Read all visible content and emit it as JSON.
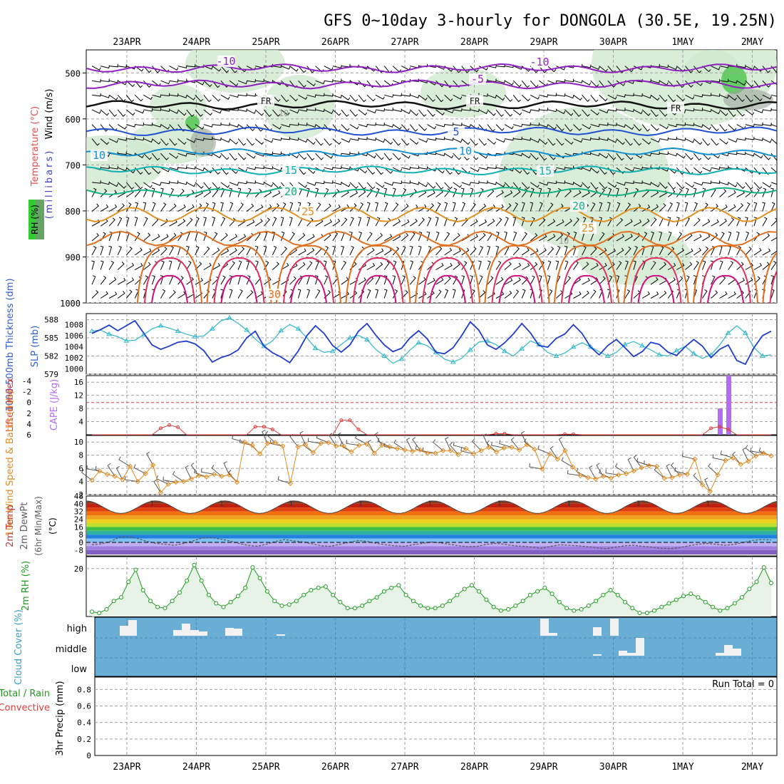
{
  "chart_data": {
    "type": "meteogram",
    "title": "GFS 0~10day 3-hourly for DONGOLA (30.5E, 19.25N)",
    "dates": [
      "23APR",
      "24APR",
      "25APR",
      "26APR",
      "27APR",
      "28APR",
      "29APR",
      "30APR",
      "1MAY",
      "2MAY"
    ],
    "panels": {
      "upper_air": {
        "ylabel_wind": "Wind (m/s)",
        "ylabel_temp": "Temperature (°C)",
        "ylabel_rh": "RH (%)",
        "ylabel_pressure": "(millibars)",
        "pressure_ticks": [
          "500",
          "600",
          "700",
          "800",
          "900",
          "1000"
        ],
        "pressure_range": [
          450,
          1000
        ],
        "isotherm_labels": [
          "-10",
          "-5",
          "FR",
          "5",
          "10",
          "15",
          "20",
          "25",
          "30"
        ],
        "rh_contour_label": "10",
        "isotherms": [
          {
            "label": "-10",
            "level": 490
          },
          {
            "label": "-5",
            "level": 525
          },
          {
            "label": "FR",
            "level": 570
          },
          {
            "label": "5",
            "level": 627
          },
          {
            "label": "10",
            "level": 673
          },
          {
            "label": "15",
            "level": 712
          },
          {
            "label": "20",
            "level": 758
          },
          {
            "label": "25",
            "level": 808
          },
          {
            "label": "30",
            "level": 860
          }
        ]
      },
      "thickness_slp": {
        "ylabel_thickness": "1000-500mb Thickness (dm)",
        "ylabel_slp": "SLP (mb)",
        "thickness_ticks": [
          "588",
          "585",
          "582",
          "579"
        ],
        "slp_ticks": [
          "1008",
          "1006",
          "1004",
          "1002",
          "1000"
        ],
        "thickness_range": [
          579,
          589
        ],
        "slp_range": [
          999,
          1010
        ],
        "slp": [
          1006.4,
          1007.1,
          1007.9,
          1006.9,
          1007.8,
          1008.7,
          1006.5,
          1004.3,
          1003.5,
          1004.1,
          1004.8,
          1005.0,
          1004.5,
          1003.3,
          1001.2,
          1002.0,
          1002.5,
          1003.4,
          1005.6,
          1006.8,
          1004.1,
          1002.9,
          1002.1,
          1001.1,
          1003.2,
          1006.0,
          1007.8,
          1006.4,
          1004.2,
          1003.0,
          1004.3,
          1006.8,
          1008.2,
          1006.1,
          1004.3,
          1003.1,
          1003.7,
          1005.6,
          1006.9,
          1005.4,
          1003.0,
          1002.7,
          1003.8,
          1006.0,
          1008.5,
          1007.0,
          1004.3,
          1003.5,
          1004.7,
          1006.3,
          1008.2,
          1006.5,
          1004.2,
          1003.9,
          1005.5,
          1006.3,
          1008.0,
          1006.4,
          1003.9,
          1002.5,
          1004.2,
          1005.3,
          1003.8,
          1002.2,
          1003.1,
          1004.8,
          1004.4,
          1003.0,
          1002.4,
          1004.0,
          1005.3,
          1004.1,
          1002.0,
          1003.5,
          1004.3,
          1001.5,
          1000.8,
          1003.8,
          1006.0,
          1006.8
        ],
        "thickness": [
          586.1,
          586.3,
          585.6,
          585.2,
          584.5,
          584.6,
          585.5,
          586.5,
          587.0,
          586.6,
          586.1,
          585.6,
          585.2,
          585.3,
          586.5,
          587.8,
          588.3,
          587.4,
          586.3,
          584.8,
          583.6,
          584.5,
          586.2,
          587.2,
          586.5,
          585.0,
          583.3,
          582.6,
          582.8,
          583.9,
          585.0,
          585.4,
          584.7,
          583.1,
          582.0,
          580.8,
          581.5,
          583.0,
          584.2,
          583.7,
          582.6,
          581.5,
          581.0,
          581.6,
          583.0,
          584.3,
          584.5,
          583.9,
          582.8,
          582.0,
          583.2,
          584.5,
          583.9,
          582.6,
          582.0,
          582.5,
          583.5,
          584.2,
          583.5,
          582.7,
          582.0,
          582.6,
          583.9,
          584.4,
          583.7,
          583.0,
          582.2,
          582.0,
          582.9,
          583.6,
          582.4,
          581.6,
          582.2,
          583.8,
          585.8,
          587.0,
          585.8,
          583.4,
          582.0,
          582.2
        ]
      },
      "stability": {
        "ylabel_li": "Lifted Index",
        "ylabel_cape": "CAPE (J/kg)",
        "li_ticks": [
          "-4",
          "-2",
          "0",
          "2",
          "4",
          "6"
        ],
        "cape_ticks": [
          "16",
          "12",
          "8",
          "4"
        ],
        "li_range": [
          -5,
          6
        ],
        "cape_range": [
          0,
          18
        ],
        "cape_bar_values": [
          8,
          18
        ],
        "li_series": [
          6,
          6,
          6,
          6,
          6,
          6,
          6,
          6,
          4.8,
          4.2,
          4.6,
          6,
          6,
          6,
          6,
          6,
          6,
          6,
          6,
          4.5,
          4.5,
          5,
          6,
          6,
          6,
          6,
          6,
          6,
          6,
          3.3,
          3.3,
          5,
          6,
          6,
          6,
          6,
          6,
          6,
          6,
          6,
          6,
          6,
          6,
          6,
          6,
          6,
          6,
          5.8,
          5.8,
          6,
          6,
          6,
          6,
          6,
          6,
          5.9,
          5.9,
          6,
          6,
          6,
          6,
          6,
          6,
          6,
          6,
          6,
          6,
          6,
          6,
          6,
          6,
          6,
          4.8,
          4.5,
          5,
          6,
          6,
          6,
          6,
          6
        ]
      },
      "wind10m": {
        "ylabel": "10m Wind Speed & Barbs (m/s)",
        "ticks": [
          "10",
          "8",
          "6",
          "4",
          "2"
        ],
        "range": [
          2,
          11
        ],
        "speed": [
          4.2,
          5.6,
          5.1,
          4.8,
          4.3,
          6.3,
          4.0,
          5.2,
          6.5,
          2.3,
          3.6,
          3.9,
          4.0,
          4.4,
          4.9,
          4.7,
          5.1,
          4.8,
          5.0,
          3.9,
          10.0,
          9.5,
          8.2,
          9.8,
          9.9,
          9.4,
          3.7,
          9.3,
          9.6,
          8.4,
          9.8,
          9.9,
          9.4,
          9.4,
          8.5,
          9.5,
          9.7,
          8.3,
          9.5,
          9.3,
          9.0,
          8.8,
          8.6,
          8.8,
          8.3,
          8.3,
          8.7,
          8.7,
          8.1,
          9.0,
          8.2,
          8.7,
          9.2,
          8.5,
          9.1,
          9.2,
          8.8,
          9.6,
          8.9,
          5.9,
          8.2,
          7.4,
          8.7,
          6.2,
          4.9,
          4.6,
          4.4,
          4.8,
          4.5,
          5.0,
          5.2,
          5.6,
          6.1,
          6.4,
          6.3,
          4.5,
          4.6,
          5.0,
          5.1,
          7.4,
          3.5,
          2.5,
          5.0,
          7.2,
          7.6,
          6.6,
          7.1,
          7.9,
          8.3,
          7.9
        ]
      },
      "temp2m": {
        "ylabel_temp": "2m Temp",
        "ylabel_dewpt": "2m DewPt",
        "ylabel_minmax": "(6hr Min/Max)",
        "ylabel_unit": "(°C)",
        "ticks": [
          "48",
          "40",
          "32",
          "24",
          "16",
          "8",
          "0",
          "-8"
        ],
        "range": [
          -14,
          48
        ],
        "temp_min": 30,
        "temp_max": 43,
        "dewpt": [
          -2.5,
          -1.5,
          1.0,
          5.5,
          6.0,
          4.0,
          1.0,
          -1.0,
          -2.0,
          -3.0,
          -1.0,
          1.5,
          4.5,
          5.0,
          3.5,
          1.5,
          -1.0,
          -3.0,
          -4.0,
          -2.0,
          1.0,
          3.0,
          1.5,
          0.5,
          -1.5,
          -3.5,
          -4.0,
          -2.0,
          0.0,
          2.0,
          1.0,
          -1.0,
          -2.5,
          -3.5,
          -4.0,
          -2.5,
          -1.0,
          0.5,
          -0.5,
          -2.0,
          -3.5,
          -4.5,
          -4.0,
          -2.0,
          -1.0,
          -2.0,
          -3.5,
          -4.0,
          -5.0,
          -6.0,
          -4.0,
          -2.5,
          -3.0,
          -3.5,
          -4.5,
          -5.5,
          -6.5,
          -5.0,
          -3.5,
          -3.0,
          -4.0,
          -5.0,
          -6.0,
          -6.5,
          -5.5,
          -3.5,
          -2.0,
          -1.0,
          -2.0,
          -3.0,
          -2.0,
          0.0,
          2.0,
          3.0,
          2.5
        ]
      },
      "rh2m": {
        "ylabel": "2m RH (%)",
        "ticks": [
          "20"
        ],
        "range": [
          0,
          25
        ],
        "values": [
          2.0,
          1.5,
          3.0,
          6.5,
          8.0,
          14.5,
          19.5,
          11.0,
          6.5,
          4.0,
          3.5,
          6.5,
          10.0,
          15.0,
          21.5,
          15.0,
          9.0,
          5.5,
          4.0,
          6.0,
          8.5,
          12.0,
          20.5,
          16.0,
          10.5,
          6.5,
          4.5,
          5.0,
          6.5,
          9.0,
          11.0,
          12.0,
          12.5,
          9.0,
          6.0,
          3.5,
          3.5,
          4.5,
          6.5,
          8.0,
          10.5,
          12.0,
          13.0,
          9.0,
          6.5,
          4.5,
          3.5,
          3.5,
          4.5,
          6.5,
          9.0,
          11.5,
          13.0,
          10.5,
          7.0,
          4.0,
          2.5,
          3.0,
          4.5,
          6.5,
          9.0,
          10.5,
          12.0,
          9.5,
          6.0,
          3.5,
          2.5,
          3.0,
          4.5,
          6.5,
          9.0,
          11.0,
          9.0,
          6.0,
          3.5,
          1.5,
          1.5,
          2.5,
          4.0,
          5.5,
          7.0,
          8.5,
          9.5,
          8.0,
          6.0,
          4.0,
          2.5,
          3.5,
          5.5,
          8.0,
          11.5,
          14.5,
          20.5,
          14.0
        ]
      },
      "cloud": {
        "ylabel": "Cloud Cover (%)",
        "levels": [
          "high",
          "middle",
          "low"
        ]
      },
      "precip": {
        "ylabel": "3hr Precip (mm)",
        "legend_total": "Total / Rain",
        "legend_convective": "Convective",
        "run_total": "Run Total = 0",
        "ticks": [
          "0.8",
          "0.6",
          "0.4",
          "0.2",
          "0"
        ],
        "range": [
          0,
          0.95
        ],
        "values": []
      }
    },
    "colors": {
      "plot_bg": "#ffffff",
      "grid": "#a0a0a0",
      "slp_line": "#1f3ccf",
      "thickness_line": "#30b8c8",
      "li_line": "#e03c3c",
      "cape_bar": "#b56cf0",
      "wind_speed": "#e08c20",
      "rh_line": "#1e9a1e",
      "rh_fill": "#e6f3e6",
      "cloud_bg": "#6aaed6",
      "cloud_bar": "#f2f2f2"
    }
  }
}
